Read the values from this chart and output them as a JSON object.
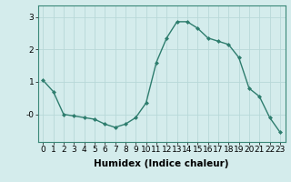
{
  "x": [
    0,
    1,
    2,
    3,
    4,
    5,
    6,
    7,
    8,
    9,
    10,
    11,
    12,
    13,
    14,
    15,
    16,
    17,
    18,
    19,
    20,
    21,
    22,
    23
  ],
  "y": [
    1.05,
    0.7,
    0.0,
    -0.05,
    -0.1,
    -0.15,
    -0.3,
    -0.4,
    -0.3,
    -0.1,
    0.35,
    1.6,
    2.35,
    2.85,
    2.85,
    2.65,
    2.35,
    2.25,
    2.15,
    1.75,
    0.8,
    0.55,
    -0.1,
    -0.55
  ],
  "line_color": "#2e7d6e",
  "marker": "D",
  "markersize": 2.0,
  "linewidth": 1.0,
  "xlabel": "Humidex (Indice chaleur)",
  "ylabel": "",
  "title": "",
  "xlim": [
    -0.5,
    23.5
  ],
  "ylim": [
    -0.85,
    3.35
  ],
  "yticks": [
    0,
    1,
    2,
    3
  ],
  "ytick_labels": [
    "-0",
    "1",
    "2",
    "3"
  ],
  "xticks": [
    0,
    1,
    2,
    3,
    4,
    5,
    6,
    7,
    8,
    9,
    10,
    11,
    12,
    13,
    14,
    15,
    16,
    17,
    18,
    19,
    20,
    21,
    22,
    23
  ],
  "bg_color": "#d4ecec",
  "grid_color": "#b8d8d8",
  "tick_fontsize": 6.5,
  "xlabel_fontsize": 7.5,
  "xlabel_fontweight": "bold"
}
